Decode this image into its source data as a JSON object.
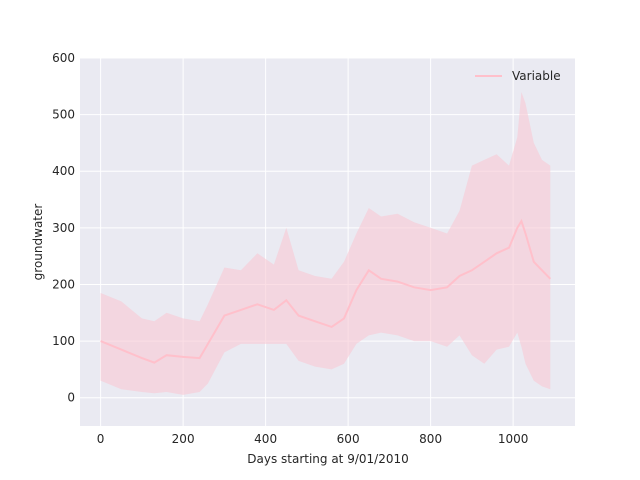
{
  "chart_data": {
    "type": "line",
    "xlabel": "Days starting at 9/01/2010",
    "ylabel": "groundwater",
    "xlim": [
      -50,
      1150
    ],
    "ylim": [
      -50,
      600
    ],
    "xticks": [
      0,
      200,
      400,
      600,
      800,
      1000
    ],
    "yticks": [
      0,
      100,
      200,
      300,
      400,
      500,
      600
    ],
    "grid": true,
    "legend_position": "top-right",
    "colors": {
      "background": "#EAEAF2",
      "grid": "#FFFFFF",
      "line": "#FFC0CB",
      "band": "#F8C8D4"
    },
    "series": [
      {
        "name": "Variable",
        "x": [
          0,
          50,
          100,
          130,
          160,
          200,
          240,
          260,
          300,
          340,
          380,
          420,
          450,
          480,
          520,
          560,
          590,
          620,
          650,
          680,
          720,
          760,
          800,
          840,
          870,
          900,
          930,
          960,
          990,
          1010,
          1020,
          1030,
          1050,
          1070,
          1090
        ],
        "mean": [
          100,
          85,
          70,
          62,
          75,
          72,
          70,
          95,
          145,
          155,
          165,
          155,
          172,
          145,
          135,
          125,
          140,
          190,
          225,
          210,
          205,
          195,
          190,
          195,
          215,
          225,
          240,
          255,
          265,
          300,
          312,
          290,
          240,
          225,
          210
        ],
        "lower": [
          30,
          15,
          10,
          8,
          10,
          5,
          10,
          25,
          80,
          95,
          95,
          95,
          95,
          65,
          55,
          50,
          60,
          95,
          110,
          115,
          110,
          100,
          100,
          90,
          110,
          75,
          60,
          85,
          90,
          115,
          90,
          60,
          30,
          20,
          15
        ],
        "upper": [
          185,
          170,
          140,
          135,
          150,
          140,
          135,
          165,
          230,
          225,
          255,
          235,
          300,
          225,
          215,
          210,
          240,
          290,
          335,
          320,
          325,
          310,
          300,
          290,
          330,
          410,
          420,
          430,
          410,
          460,
          540,
          520,
          450,
          420,
          410
        ]
      }
    ]
  }
}
